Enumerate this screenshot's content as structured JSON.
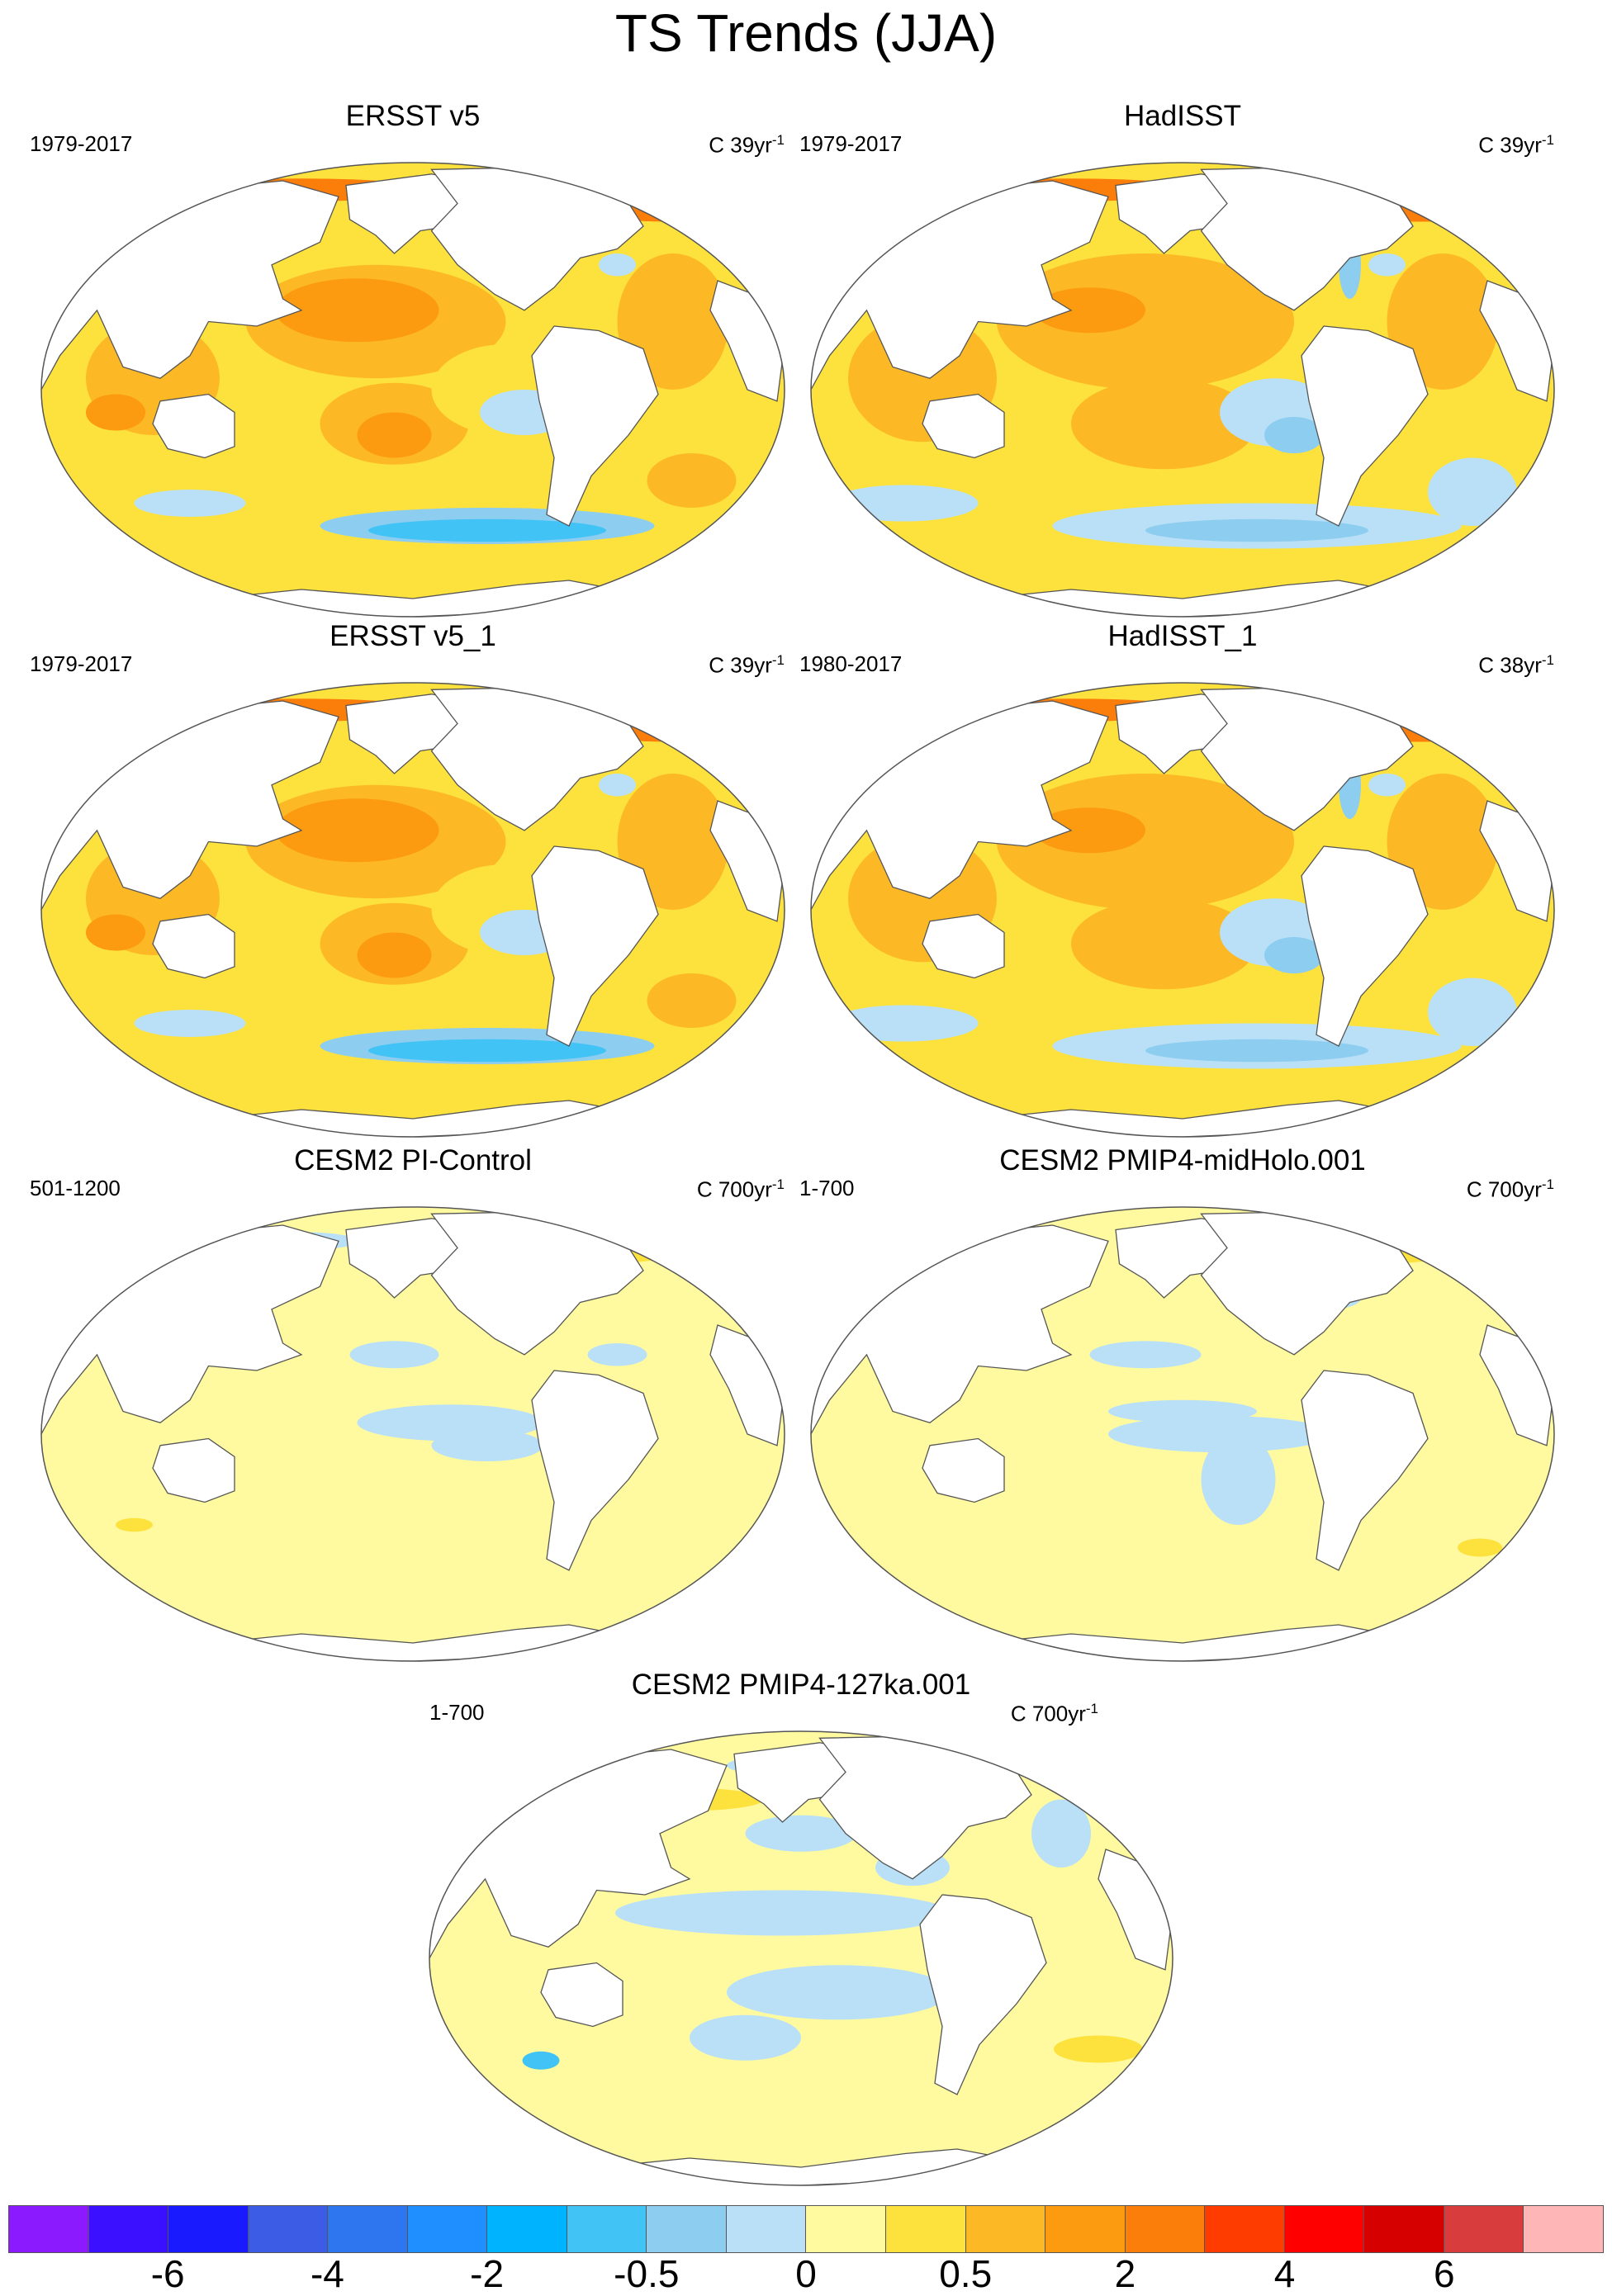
{
  "title": "TS Trends (JJA)",
  "panels": [
    {
      "title": "ERSST v5",
      "period": "1979-2017",
      "units_prefix": "C 39yr",
      "units_exp": "-1",
      "style": "obs"
    },
    {
      "title": "HadISST",
      "period": "1979-2017",
      "units_prefix": "C 39yr",
      "units_exp": "-1",
      "style": "obs2"
    },
    {
      "title": "ERSST v5_1",
      "period": "1979-2017",
      "units_prefix": "C 39yr",
      "units_exp": "-1",
      "style": "obs"
    },
    {
      "title": "HadISST_1",
      "period": "1980-2017",
      "units_prefix": "C 38yr",
      "units_exp": "-1",
      "style": "obs2"
    },
    {
      "title": "CESM2 PI-Control",
      "period": "501-1200",
      "units_prefix": "C 700yr",
      "units_exp": "-1",
      "style": "model"
    },
    {
      "title": "CESM2 PMIP4-midHolo.001",
      "period": "1-700",
      "units_prefix": "C 700yr",
      "units_exp": "-1",
      "style": "model2"
    },
    {
      "title": "CESM2 PMIP4-127ka.001",
      "period": "1-700",
      "units_prefix": "C 700yr",
      "units_exp": "-1",
      "style": "model3"
    }
  ],
  "colorbar": {
    "colors": [
      "#8c1aff",
      "#3b0fff",
      "#1a1aff",
      "#3d5ce6",
      "#2e76f0",
      "#1f8fff",
      "#00b3ff",
      "#41c3f5",
      "#8dcdf0",
      "#b9e0f7",
      "#fffaa0",
      "#fde23e",
      "#fdb925",
      "#fc9a10",
      "#fb7d0a",
      "#ff3c00",
      "#ff0000",
      "#d70000",
      "#d93c3c",
      "#ffb6b6"
    ],
    "tick_labels": [
      "-6",
      "-4",
      "-2",
      "-0.5",
      "0",
      "0.5",
      "2",
      "4",
      "6"
    ]
  }
}
